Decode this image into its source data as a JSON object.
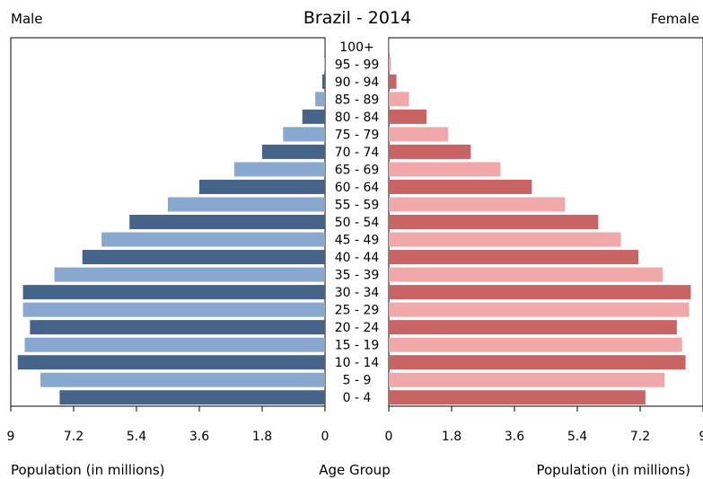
{
  "chart_data": {
    "type": "bar",
    "title": "Brazil - 2014",
    "left_label": "Male",
    "right_label": "Female",
    "xlabel_left": "Population (in millions)",
    "xlabel_center": "Age Group",
    "xlabel_right": "Population (in millions)",
    "categories": [
      "0 - 4",
      "5 - 9",
      "10 - 14",
      "15 - 19",
      "20 - 24",
      "25 - 29",
      "30 - 34",
      "35 - 39",
      "40 - 44",
      "45 - 49",
      "50 - 54",
      "55 - 59",
      "60 - 64",
      "65 - 69",
      "70 - 74",
      "75 - 79",
      "80 - 84",
      "85 - 89",
      "90 - 94",
      "95 - 99",
      "100+"
    ],
    "series": [
      {
        "name": "Male",
        "values": [
          7.6,
          8.15,
          8.8,
          8.6,
          8.45,
          8.65,
          8.65,
          7.75,
          6.95,
          6.4,
          5.6,
          4.5,
          3.6,
          2.6,
          1.8,
          1.2,
          0.65,
          0.28,
          0.08,
          0.02,
          0.005
        ]
      },
      {
        "name": "Female",
        "values": [
          7.35,
          7.9,
          8.5,
          8.4,
          8.25,
          8.6,
          8.65,
          7.85,
          7.15,
          6.65,
          6.0,
          5.05,
          4.1,
          3.2,
          2.35,
          1.7,
          1.08,
          0.58,
          0.22,
          0.06,
          0.015
        ]
      }
    ],
    "xlim": [
      0,
      9
    ],
    "ticks_left": [
      "9",
      "7.2",
      "5.4",
      "3.6",
      "1.8",
      "0"
    ],
    "ticks_right": [
      "0",
      "1.8",
      "3.6",
      "5.4",
      "7.2",
      "9"
    ],
    "grid": false,
    "colors": {
      "male_dark": "#46648a",
      "male_light": "#89a8cf",
      "female_dark": "#c96464",
      "female_light": "#f0a8a8"
    }
  }
}
